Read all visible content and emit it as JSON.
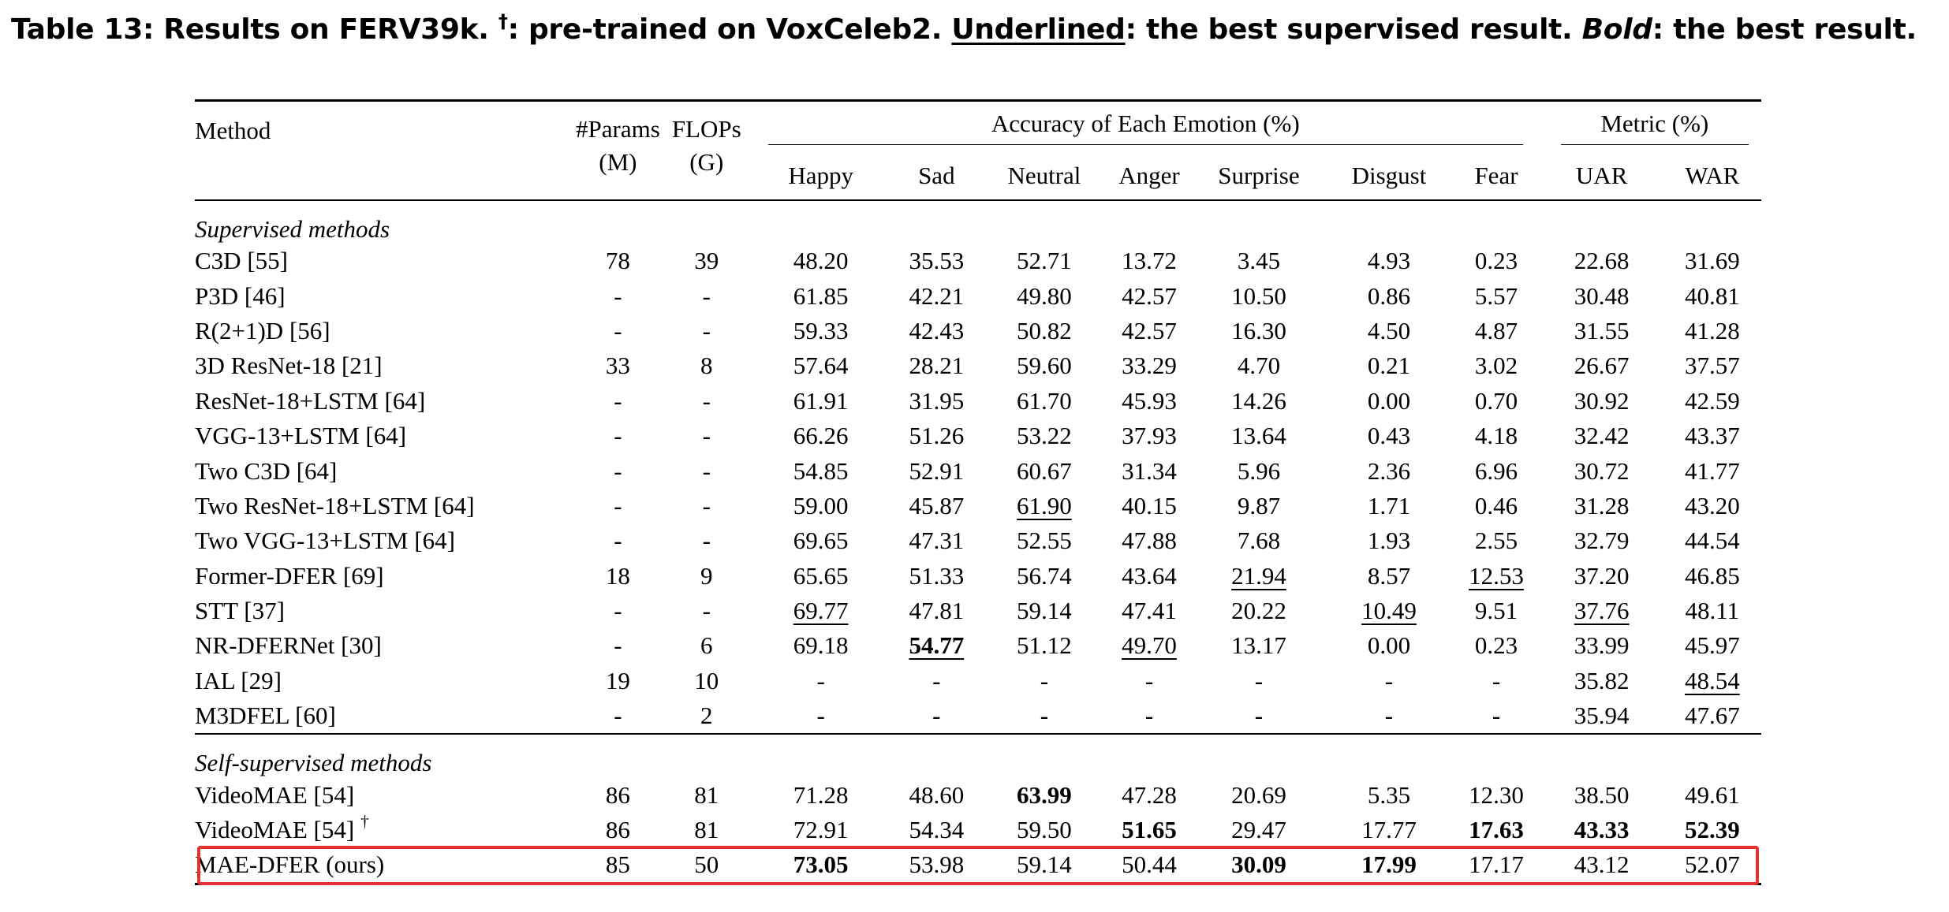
{
  "caption": {
    "prefix": "Table 13: Results on FERV39k. ",
    "dagger": "†",
    "after_dagger": ": pre-trained on VoxCeleb2. ",
    "underlined_word": "Underlined",
    "after_underlined": ": the best supervised result. ",
    "bold_word": "Bold",
    "after_bold": ": the best result."
  },
  "header": {
    "method": "Method",
    "params_line1": "#Params",
    "params_line2": "(M)",
    "flops_line1": "FLOPs",
    "flops_line2": "(G)",
    "emotion_group": "Accuracy of Each Emotion (%)",
    "metric_group": "Metric (%)",
    "emotions": [
      "Happy",
      "Sad",
      "Neutral",
      "Anger",
      "Surprise",
      "Disgust",
      "Fear"
    ],
    "metrics": [
      "UAR",
      "WAR"
    ]
  },
  "sections": [
    {
      "title": "Supervised methods",
      "rows": [
        {
          "method": "C3D [55]",
          "params": "78",
          "flops": "39",
          "values": [
            "48.20",
            "35.53",
            "52.71",
            "13.72",
            "3.45",
            "4.93",
            "0.23",
            "22.68",
            "31.69"
          ],
          "underline": [],
          "bold": []
        },
        {
          "method": "P3D [46]",
          "params": "-",
          "flops": "-",
          "values": [
            "61.85",
            "42.21",
            "49.80",
            "42.57",
            "10.50",
            "0.86",
            "5.57",
            "30.48",
            "40.81"
          ],
          "underline": [],
          "bold": []
        },
        {
          "method": "R(2+1)D [56]",
          "params": "-",
          "flops": "-",
          "values": [
            "59.33",
            "42.43",
            "50.82",
            "42.57",
            "16.30",
            "4.50",
            "4.87",
            "31.55",
            "41.28"
          ],
          "underline": [],
          "bold": []
        },
        {
          "method": "3D ResNet-18 [21]",
          "params": "33",
          "flops": "8",
          "values": [
            "57.64",
            "28.21",
            "59.60",
            "33.29",
            "4.70",
            "0.21",
            "3.02",
            "26.67",
            "37.57"
          ],
          "underline": [],
          "bold": []
        },
        {
          "method": "ResNet-18+LSTM [64]",
          "params": "-",
          "flops": "-",
          "values": [
            "61.91",
            "31.95",
            "61.70",
            "45.93",
            "14.26",
            "0.00",
            "0.70",
            "30.92",
            "42.59"
          ],
          "underline": [],
          "bold": []
        },
        {
          "method": "VGG-13+LSTM [64]",
          "params": "-",
          "flops": "-",
          "values": [
            "66.26",
            "51.26",
            "53.22",
            "37.93",
            "13.64",
            "0.43",
            "4.18",
            "32.42",
            "43.37"
          ],
          "underline": [],
          "bold": []
        },
        {
          "method": "Two C3D [64]",
          "params": "-",
          "flops": "-",
          "values": [
            "54.85",
            "52.91",
            "60.67",
            "31.34",
            "5.96",
            "2.36",
            "6.96",
            "30.72",
            "41.77"
          ],
          "underline": [],
          "bold": []
        },
        {
          "method": "Two ResNet-18+LSTM [64]",
          "params": "-",
          "flops": "-",
          "values": [
            "59.00",
            "45.87",
            "61.90",
            "40.15",
            "9.87",
            "1.71",
            "0.46",
            "31.28",
            "43.20"
          ],
          "underline": [
            2
          ],
          "bold": []
        },
        {
          "method": "Two VGG-13+LSTM [64]",
          "params": "-",
          "flops": "-",
          "values": [
            "69.65",
            "47.31",
            "52.55",
            "47.88",
            "7.68",
            "1.93",
            "2.55",
            "32.79",
            "44.54"
          ],
          "underline": [],
          "bold": []
        },
        {
          "method": "Former-DFER [69]",
          "params": "18",
          "flops": "9",
          "values": [
            "65.65",
            "51.33",
            "56.74",
            "43.64",
            "21.94",
            "8.57",
            "12.53",
            "37.20",
            "46.85"
          ],
          "underline": [
            4,
            6
          ],
          "bold": []
        },
        {
          "method": "STT [37]",
          "params": "-",
          "flops": "-",
          "values": [
            "69.77",
            "47.81",
            "59.14",
            "47.41",
            "20.22",
            "10.49",
            "9.51",
            "37.76",
            "48.11"
          ],
          "underline": [
            0,
            5,
            7
          ],
          "bold": []
        },
        {
          "method": "NR-DFERNet [30]",
          "params": "-",
          "flops": "6",
          "values": [
            "69.18",
            "54.77",
            "51.12",
            "49.70",
            "13.17",
            "0.00",
            "0.23",
            "33.99",
            "45.97"
          ],
          "underline": [
            1,
            3
          ],
          "bold": [
            1
          ]
        },
        {
          "method": "IAL [29]",
          "params": "19",
          "flops": "10",
          "values": [
            "-",
            "-",
            "-",
            "-",
            "-",
            "-",
            "-",
            "35.82",
            "48.54"
          ],
          "underline": [
            8
          ],
          "bold": []
        },
        {
          "method": "M3DFEL [60]",
          "params": "-",
          "flops": "2",
          "values": [
            "-",
            "-",
            "-",
            "-",
            "-",
            "-",
            "-",
            "35.94",
            "47.67"
          ],
          "underline": [],
          "bold": []
        }
      ]
    },
    {
      "title": "Self-supervised methods",
      "rows": [
        {
          "method": "VideoMAE [54]",
          "params": "86",
          "flops": "81",
          "values": [
            "71.28",
            "48.60",
            "63.99",
            "47.28",
            "20.69",
            "5.35",
            "12.30",
            "38.50",
            "49.61"
          ],
          "underline": [],
          "bold": [
            2
          ]
        },
        {
          "method": "VideoMAE [54]",
          "dagger": "†",
          "params": "86",
          "flops": "81",
          "values": [
            "72.91",
            "54.34",
            "59.50",
            "51.65",
            "29.47",
            "17.77",
            "17.63",
            "43.33",
            "52.39"
          ],
          "underline": [],
          "bold": [
            3,
            6,
            7,
            8
          ]
        },
        {
          "method": "MAE-DFER (ours)",
          "params": "85",
          "flops": "50",
          "values": [
            "73.05",
            "53.98",
            "59.14",
            "50.44",
            "30.09",
            "17.99",
            "17.17",
            "43.12",
            "52.07"
          ],
          "underline": [],
          "bold": [
            0,
            4,
            5
          ],
          "highlighted": true
        }
      ]
    }
  ],
  "highlight_color": "#e43131"
}
